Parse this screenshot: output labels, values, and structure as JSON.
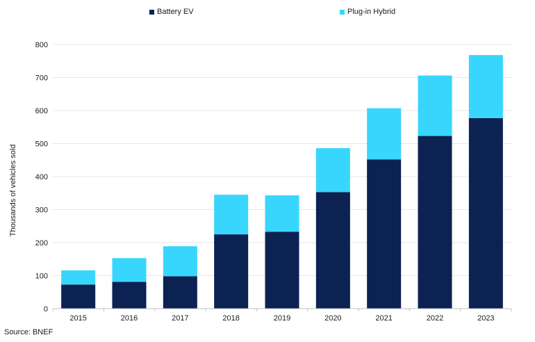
{
  "chart_data": {
    "type": "bar",
    "stacked": true,
    "categories": [
      "2015",
      "2016",
      "2017",
      "2018",
      "2019",
      "2020",
      "2021",
      "2022",
      "2023"
    ],
    "series": [
      {
        "name": "Battery EV",
        "color": "#0b2253",
        "values": [
          73,
          81,
          98,
          225,
          233,
          353,
          452,
          523,
          577
        ]
      },
      {
        "name": "Plug-in Hybrid",
        "color": "#38d6fd",
        "values": [
          43,
          72,
          91,
          120,
          110,
          133,
          155,
          183,
          191
        ]
      }
    ],
    "ylabel": "Thousands of vehicles sold",
    "xlabel": "",
    "ylim": [
      0,
      800
    ],
    "yticks": [
      0,
      100,
      200,
      300,
      400,
      500,
      600,
      700,
      800
    ],
    "grid": true,
    "legend_position": "top"
  },
  "source": "Source: BNEF"
}
